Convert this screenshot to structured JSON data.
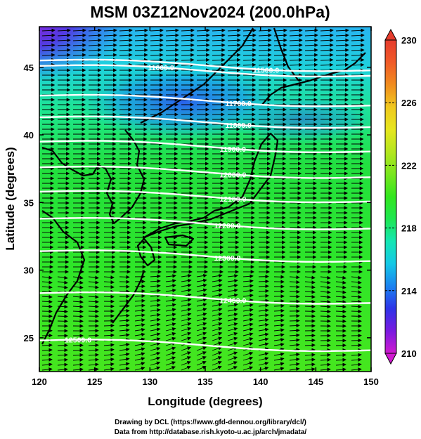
{
  "figure": {
    "title": "MSM 03Z12Nov2024 (200.0hPa)",
    "xlabel": "Longitude (degrees)",
    "ylabel": "Latitude  (degrees)",
    "credits": [
      "Drawing by DCL (https://www.gfd-dennou.org/library/dcl/)",
      "Data from http://database.rish.kyoto-u.ac.jp/arch/jmadata/"
    ]
  },
  "map": {
    "xlim": [
      120,
      150
    ],
    "ylim": [
      22.5,
      48
    ],
    "x_ticks": [
      "120",
      "125",
      "130",
      "135",
      "140",
      "145",
      "150"
    ],
    "y_ticks": [
      "25",
      "30",
      "35",
      "40",
      "45"
    ]
  },
  "colorbar": {
    "range": [
      210,
      230
    ],
    "tick_labels": [
      "230",
      "226",
      "222",
      "218",
      "214",
      "210"
    ],
    "colors": [
      "#d01ad0",
      "#7a1ae0",
      "#2e34e8",
      "#1a82f0",
      "#14c8e6",
      "#14e6b4",
      "#1ee650",
      "#32e61e",
      "#78e61e",
      "#b4e61e",
      "#e6e61e",
      "#f0c81e",
      "#f08c1e",
      "#f05a28",
      "#e63c2d"
    ]
  },
  "contours": [
    {
      "label": "11600.0",
      "lat": 45.1,
      "label_lon": 131
    },
    {
      "label": "11500.0",
      "lat": 45.5,
      "label_lon": 140.5
    },
    {
      "label": "11700.0",
      "lat": 42.9,
      "label_lon": 138
    },
    {
      "label": "11800.0",
      "lat": 41.3,
      "label_lon": 138
    },
    {
      "label": "11900.0",
      "lat": 39.5,
      "label_lon": 137.5
    },
    {
      "label": "12000.0",
      "lat": 37.6,
      "label_lon": 137.5
    },
    {
      "label": "12100.0",
      "lat": 35.8,
      "label_lon": 137.5
    },
    {
      "label": "12200.0",
      "lat": 33.8,
      "label_lon": 137
    },
    {
      "label": "12300.0",
      "lat": 31.4,
      "label_lon": 137
    },
    {
      "label": "12400.0",
      "lat": 28.3,
      "label_lon": 137.5
    },
    {
      "label": "12500.0",
      "lat": 24.8,
      "label_lon": 123.5
    }
  ]
}
